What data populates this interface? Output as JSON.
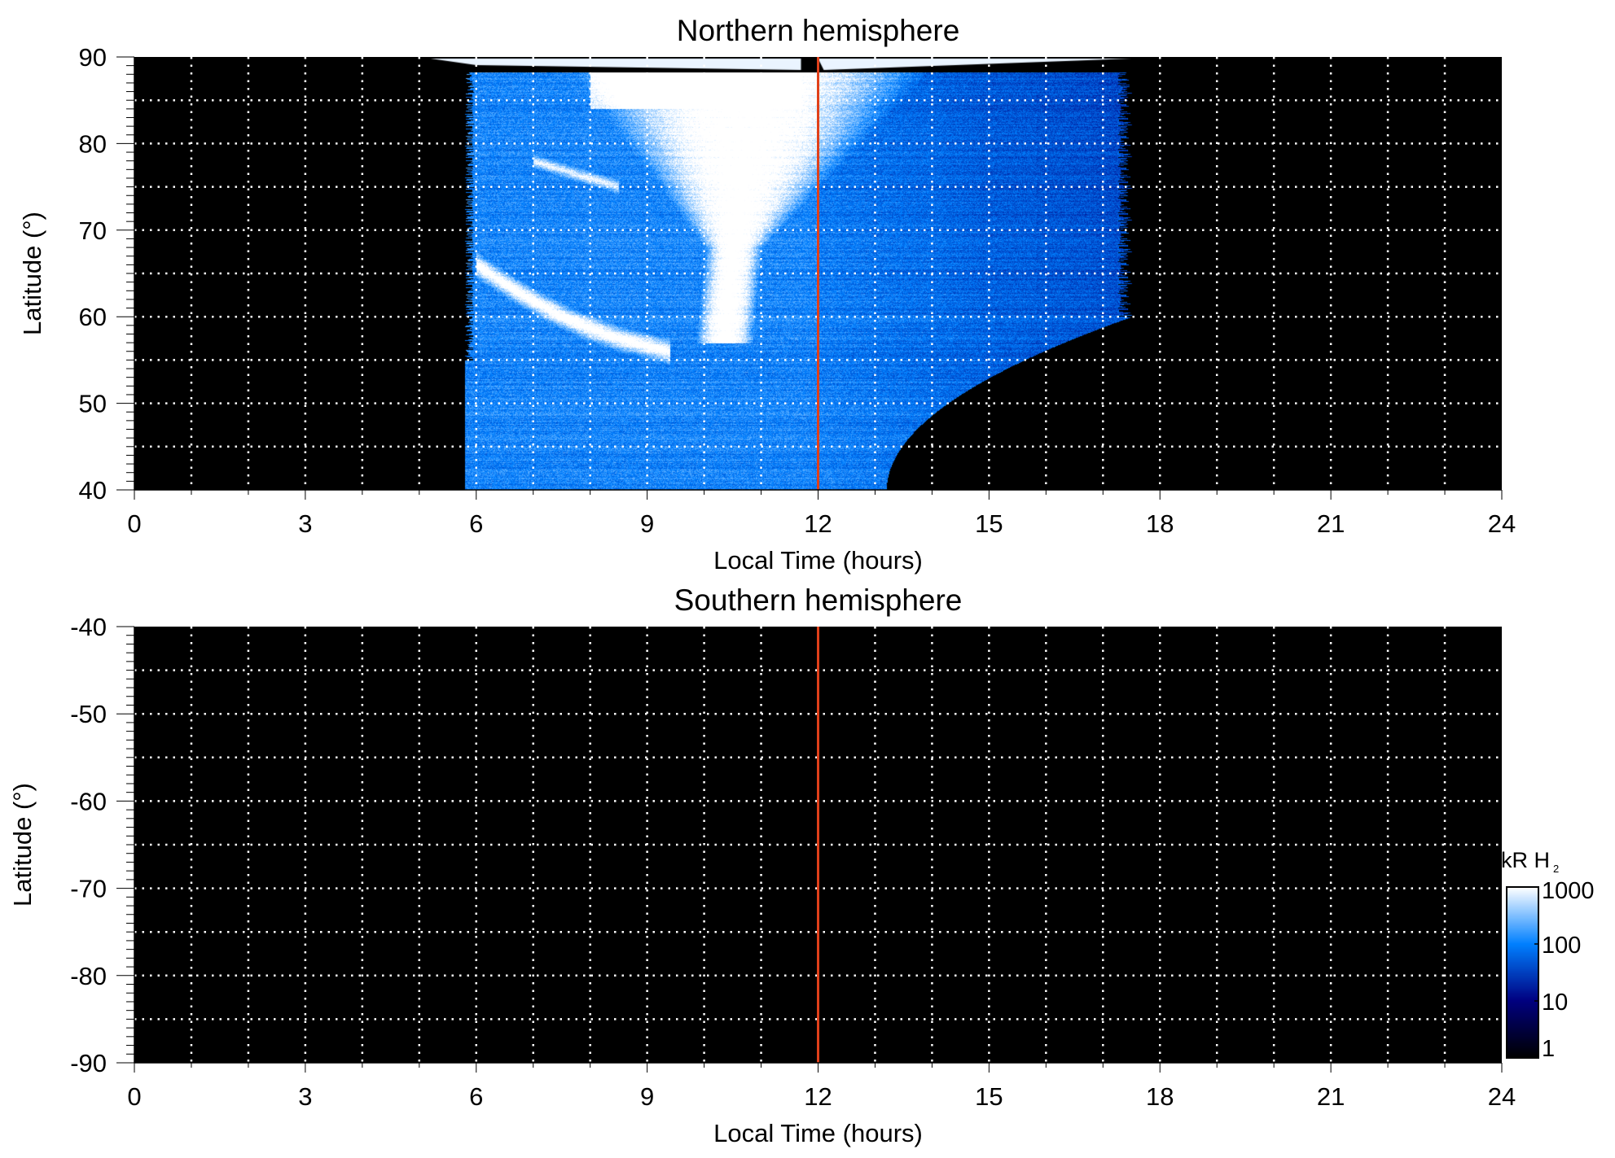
{
  "chart_data": [
    {
      "type": "heatmap",
      "title": "Northern hemisphere",
      "xlabel": "Local Time (hours)",
      "ylabel": "Latitude (°)",
      "xlim": [
        0,
        24
      ],
      "ylim": [
        40,
        90
      ],
      "xticks": [
        "0",
        "3",
        "6",
        "9",
        "12",
        "15",
        "18",
        "21",
        "24"
      ],
      "yticks": [
        "40",
        "50",
        "60",
        "70",
        "80",
        "90"
      ],
      "grid": true,
      "reference_line_lt": 12,
      "reference_line_color": "#e0401a",
      "coverage_lt": [
        5.8,
        17.5
      ],
      "features": [
        {
          "name": "dayside cusp emission",
          "lt": [
            7.5,
            11.8
          ],
          "lat": [
            58,
            88
          ],
          "level_kR": 1000
        },
        {
          "name": "dawn arc",
          "lt": [
            6.0,
            9.4
          ],
          "lat": [
            56,
            66
          ],
          "level_kR": 1000
        },
        {
          "name": "dusk low-latitude boundary",
          "lt": [
            13.2,
            17.5
          ],
          "lat": [
            40,
            60
          ]
        }
      ]
    },
    {
      "type": "heatmap",
      "title": "Southern hemisphere",
      "xlabel": "Local Time (hours)",
      "ylabel": "Latitude (°)",
      "xlim": [
        0,
        24
      ],
      "ylim": [
        -90,
        -40
      ],
      "xticks": [
        "0",
        "3",
        "6",
        "9",
        "12",
        "15",
        "18",
        "21",
        "24"
      ],
      "yticks": [
        "-40",
        "-50",
        "-60",
        "-70",
        "-80",
        "-90"
      ],
      "grid": true,
      "reference_line_lt": 12,
      "reference_line_color": "#e0401a",
      "coverage_lt": []
    }
  ],
  "colorbar": {
    "label": "kR H",
    "label_sub": "2",
    "scale": "log",
    "range": [
      1,
      1000
    ],
    "ticks": [
      "1",
      "10",
      "100",
      "1000"
    ],
    "colors": [
      "#000000",
      "#000080",
      "#0080ff",
      "#ffffff"
    ]
  }
}
